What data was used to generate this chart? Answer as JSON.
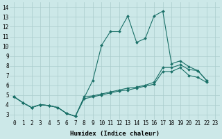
{
  "xlabel": "Humidex (Indice chaleur)",
  "bg_color": "#cce8e8",
  "grid_color": "#aacccc",
  "line_color": "#1a7068",
  "xlim": [
    -0.5,
    23.5
  ],
  "ylim": [
    2.5,
    14.5
  ],
  "xticks": [
    0,
    1,
    2,
    3,
    4,
    5,
    6,
    7,
    8,
    9,
    10,
    11,
    12,
    13,
    14,
    15,
    16,
    17,
    18,
    19,
    20,
    21,
    22,
    23
  ],
  "yticks": [
    3,
    4,
    5,
    6,
    7,
    8,
    9,
    10,
    11,
    12,
    13,
    14
  ],
  "series1_y": [
    4.8,
    4.2,
    3.7,
    4.0,
    3.9,
    3.7,
    3.1,
    2.8,
    4.7,
    6.5,
    10.1,
    11.5,
    11.5,
    13.1,
    10.4,
    10.8,
    13.1,
    13.6,
    8.2,
    8.5,
    7.9,
    7.5,
    6.5
  ],
  "series2_y": [
    4.8,
    4.2,
    3.7,
    4.0,
    3.9,
    3.7,
    3.1,
    2.8,
    4.8,
    4.9,
    5.1,
    5.3,
    5.5,
    5.7,
    5.8,
    6.0,
    6.3,
    7.8,
    7.8,
    8.1,
    7.6,
    7.5,
    6.5
  ],
  "series3_y": [
    4.8,
    4.2,
    3.7,
    4.0,
    3.9,
    3.7,
    3.1,
    2.8,
    4.6,
    4.8,
    5.0,
    5.2,
    5.4,
    5.5,
    5.7,
    5.9,
    6.1,
    7.4,
    7.4,
    7.8,
    7.0,
    6.8,
    6.3
  ],
  "tick_fontsize": 5.5,
  "axis_fontsize": 6.5
}
